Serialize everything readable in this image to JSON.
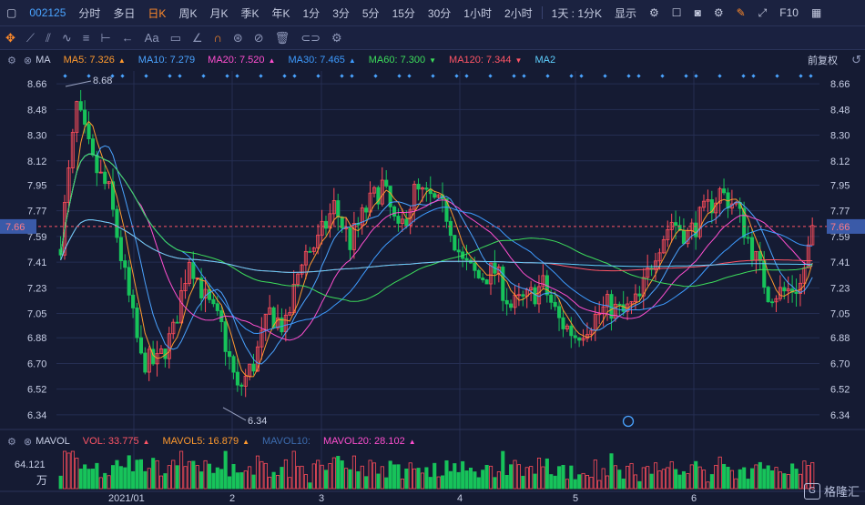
{
  "topbar": {
    "code": "002125",
    "periods": [
      "分时",
      "多日",
      "日K",
      "周K",
      "月K",
      "季K",
      "年K",
      "1分",
      "3分",
      "5分",
      "15分",
      "30分",
      "1小时",
      "2小时"
    ],
    "active_period": "日K",
    "interval_select": "1天 : 1分K",
    "display_menu": "显示",
    "f10": "F10"
  },
  "toolbar": {
    "text_tool": "Aa"
  },
  "indicator": {
    "name": "MA",
    "items": [
      {
        "label": "MA5: 7.326",
        "color": "#ff9a2e",
        "arrow": "▲"
      },
      {
        "label": "MA10: 7.279",
        "color": "#4aa3ff",
        "arrow": ""
      },
      {
        "label": "MA20: 7.520",
        "color": "#ff4fd0",
        "arrow": "▲"
      },
      {
        "label": "MA30: 7.465",
        "color": "#3d9bff",
        "arrow": "▲"
      },
      {
        "label": "MA60: 7.300",
        "color": "#3ddc5b",
        "arrow": "▼"
      },
      {
        "label": "MA120: 7.344",
        "color": "#ff5566",
        "arrow": "▼"
      },
      {
        "label": "MA2",
        "color": "#5ed0ff",
        "arrow": ""
      }
    ],
    "adjust": "前复权"
  },
  "volume": {
    "name": "MAVOL",
    "items": [
      {
        "label": "VOL: 33.775",
        "color": "#ff5566",
        "arrow": "▲"
      },
      {
        "label": "MAVOL5: 16.879",
        "color": "#ff9a2e",
        "arrow": "▲"
      },
      {
        "label": "MAVOL10:",
        "color": "#3d6db0",
        "arrow": ""
      },
      {
        "label": "MAVOL20: 28.102",
        "color": "#ff4fd0",
        "arrow": "▲"
      }
    ]
  },
  "colors": {
    "up": "#ff4d5a",
    "down": "#17c35a",
    "grid": "#252e52",
    "axis_text": "#c8cfe6"
  },
  "chart_data": {
    "type": "candlestick",
    "price_ticks": [
      8.66,
      8.48,
      8.3,
      8.12,
      7.95,
      7.77,
      7.59,
      7.41,
      7.23,
      7.05,
      6.88,
      6.7,
      6.52,
      6.34
    ],
    "ylim": [
      6.25,
      8.75
    ],
    "current_price": "7.66",
    "high_label": "8.68",
    "low_label": "6.34",
    "x_labels": [
      "2021/01",
      "2",
      "3",
      "4",
      "5",
      "6"
    ],
    "volume_axis_top": "64.121",
    "volume_unit": "万",
    "ma_series_colors": [
      "#ff9a2e",
      "#4aa3ff",
      "#ff4fd0",
      "#3d9bff",
      "#3ddc5b",
      "#ff5566",
      "#5ed0ff"
    ]
  },
  "watermark": "格隆汇"
}
